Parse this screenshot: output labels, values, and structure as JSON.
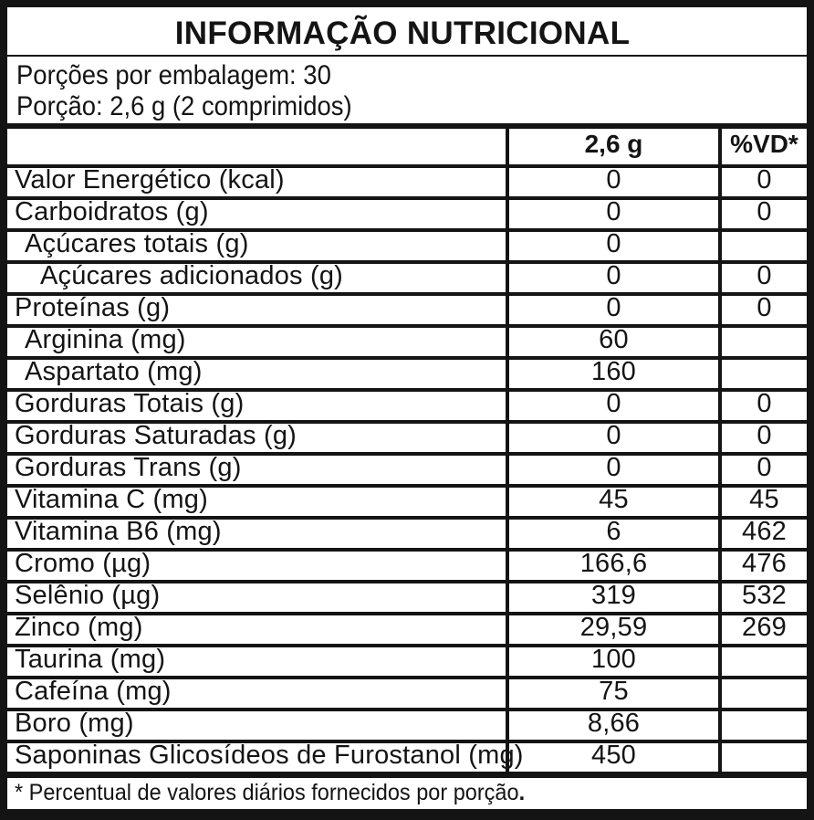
{
  "title": "INFORMAÇÃO NUTRICIONAL",
  "serving_info": {
    "servings_per_package": "Porções por embalagem: 30",
    "serving_size": "Porção: 2,6 g (2 comprimidos)"
  },
  "table": {
    "columns": {
      "nutrient": "",
      "amount": "2,6 g",
      "daily_value": "%VD*"
    },
    "rows": [
      {
        "label": "Valor Energético (kcal)",
        "indent": 0,
        "amount": "0",
        "vd": "0"
      },
      {
        "label": "Carboidratos (g)",
        "indent": 0,
        "amount": "0",
        "vd": "0"
      },
      {
        "label": "Açúcares totais (g)",
        "indent": 1,
        "amount": "0",
        "vd": ""
      },
      {
        "label": "Açúcares adicionados (g)",
        "indent": 2,
        "amount": "0",
        "vd": "0"
      },
      {
        "label": "Proteínas (g)",
        "indent": 0,
        "amount": "0",
        "vd": "0"
      },
      {
        "label": "Arginina (mg)",
        "indent": 1,
        "amount": "60",
        "vd": ""
      },
      {
        "label": "Aspartato (mg)",
        "indent": 1,
        "amount": "160",
        "vd": ""
      },
      {
        "label": "Gorduras Totais (g)",
        "indent": 0,
        "amount": "0",
        "vd": "0"
      },
      {
        "label": "Gorduras Saturadas (g)",
        "indent": 0,
        "amount": "0",
        "vd": "0"
      },
      {
        "label": "Gorduras Trans (g)",
        "indent": 0,
        "amount": "0",
        "vd": "0"
      },
      {
        "label": "Vitamina C (mg)",
        "indent": 0,
        "amount": "45",
        "vd": "45"
      },
      {
        "label": "Vitamina B6 (mg)",
        "indent": 0,
        "amount": "6",
        "vd": "462"
      },
      {
        "label": "Cromo (µg)",
        "indent": 0,
        "amount": "166,6",
        "vd": "476"
      },
      {
        "label": "Selênio (µg)",
        "indent": 0,
        "amount": "319",
        "vd": "532"
      },
      {
        "label": "Zinco (mg)",
        "indent": 0,
        "amount": "29,59",
        "vd": "269"
      },
      {
        "label": "Taurina (mg)",
        "indent": 0,
        "amount": "100",
        "vd": ""
      },
      {
        "label": "Cafeína (mg)",
        "indent": 0,
        "amount": "75",
        "vd": ""
      },
      {
        "label": "Boro (mg)",
        "indent": 0,
        "amount": "8,66",
        "vd": ""
      },
      {
        "label": "Saponinas Glicosídeos de Furostanol (mg)",
        "indent": 0,
        "amount": "450",
        "vd": ""
      }
    ]
  },
  "footnote": {
    "text": "* Percentual de valores diários fornecidos por porção",
    "suffix": "."
  },
  "colors": {
    "border": "#141414",
    "background": "#ffffff",
    "text": "#141414"
  }
}
